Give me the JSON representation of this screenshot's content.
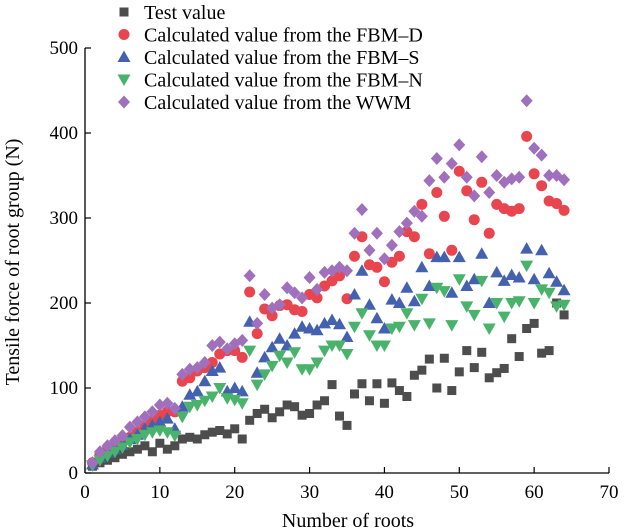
{
  "chart_data": {
    "type": "scatter",
    "xlabel": "Number of roots",
    "ylabel": "Tensile force of root group (N)",
    "xlim": [
      0,
      70
    ],
    "ylim": [
      0,
      500
    ],
    "xticks": [
      0,
      10,
      20,
      30,
      40,
      50,
      60,
      70
    ],
    "yticks": [
      0,
      100,
      200,
      300,
      400,
      500
    ],
    "grid": false,
    "legend_position": "top-left",
    "series": [
      {
        "name": "Test value",
        "marker": "square",
        "color": "#4d4d4d",
        "x": [
          1,
          2,
          3,
          4,
          5,
          6,
          7,
          8,
          9,
          10,
          11,
          12,
          13,
          14,
          15,
          16,
          17,
          18,
          19,
          20,
          21,
          22,
          23,
          24,
          25,
          26,
          27,
          28,
          29,
          30,
          31,
          32,
          33,
          34,
          35,
          36,
          37,
          38,
          39,
          40,
          41,
          42,
          43,
          44,
          45,
          46,
          47,
          48,
          49,
          50,
          51,
          52,
          53,
          54,
          55,
          56,
          57,
          58,
          59,
          60,
          61,
          62,
          63,
          64
        ],
        "y": [
          8,
          12,
          15,
          18,
          22,
          25,
          28,
          32,
          25,
          35,
          28,
          32,
          40,
          42,
          40,
          45,
          48,
          50,
          46,
          52,
          40,
          62,
          70,
          75,
          65,
          72,
          80,
          78,
          68,
          70,
          80,
          85,
          104,
          67,
          56,
          93,
          105,
          85,
          105,
          82,
          106,
          97,
          90,
          115,
          121,
          134,
          100,
          135,
          97,
          119,
          144,
          124,
          142,
          112,
          118,
          123,
          158,
          137,
          170,
          176,
          141,
          144,
          200,
          186
        ]
      },
      {
        "name": "Calculated value from the FBM–D",
        "marker": "circle",
        "color": "#e8454f",
        "x": [
          1,
          2,
          3,
          4,
          5,
          6,
          7,
          8,
          9,
          10,
          11,
          12,
          13,
          14,
          15,
          16,
          17,
          18,
          19,
          20,
          21,
          22,
          23,
          24,
          25,
          26,
          27,
          28,
          29,
          30,
          31,
          32,
          33,
          34,
          35,
          36,
          37,
          38,
          39,
          40,
          41,
          42,
          43,
          44,
          45,
          46,
          47,
          48,
          49,
          50,
          51,
          52,
          53,
          54,
          55,
          56,
          57,
          58,
          59,
          60,
          61,
          62,
          63,
          64
        ],
        "y": [
          12,
          22,
          28,
          32,
          38,
          42,
          48,
          55,
          62,
          68,
          72,
          72,
          108,
          112,
          120,
          124,
          130,
          140,
          144,
          144,
          136,
          213,
          164,
          193,
          185,
          197,
          198,
          192,
          190,
          210,
          206,
          220,
          226,
          232,
          205,
          255,
          278,
          245,
          242,
          225,
          248,
          255,
          284,
          278,
          316,
          258,
          330,
          302,
          262,
          355,
          332,
          298,
          342,
          282,
          316,
          311,
          308,
          311,
          396,
          352,
          338,
          320,
          317,
          309
        ]
      },
      {
        "name": "Calculated value from the FBM–S",
        "marker": "triangle-up",
        "color": "#4461b0",
        "x": [
          1,
          2,
          3,
          4,
          5,
          6,
          7,
          8,
          9,
          10,
          11,
          12,
          13,
          14,
          15,
          16,
          17,
          18,
          19,
          20,
          21,
          22,
          23,
          24,
          25,
          26,
          27,
          28,
          29,
          30,
          31,
          32,
          33,
          34,
          35,
          36,
          37,
          38,
          39,
          40,
          41,
          42,
          43,
          44,
          45,
          46,
          47,
          48,
          49,
          50,
          51,
          52,
          53,
          54,
          55,
          56,
          57,
          58,
          59,
          60,
          61,
          62,
          63,
          64
        ],
        "y": [
          10,
          18,
          24,
          28,
          33,
          40,
          45,
          52,
          56,
          60,
          64,
          52,
          78,
          92,
          96,
          108,
          120,
          124,
          96,
          100,
          96,
          178,
          118,
          136,
          148,
          158,
          150,
          164,
          172,
          170,
          168,
          176,
          180,
          175,
          160,
          210,
          238,
          198,
          182,
          170,
          204,
          200,
          218,
          202,
          242,
          220,
          254,
          254,
          212,
          254,
          220,
          228,
          258,
          200,
          236,
          226,
          233,
          230,
          264,
          228,
          262,
          235,
          225,
          215
        ]
      },
      {
        "name": "Calculated value from the FBM–N",
        "marker": "triangle-down",
        "color": "#49b26b",
        "x": [
          1,
          2,
          3,
          4,
          5,
          6,
          7,
          8,
          9,
          10,
          11,
          12,
          13,
          14,
          15,
          16,
          17,
          18,
          19,
          20,
          21,
          22,
          23,
          24,
          25,
          26,
          27,
          28,
          29,
          30,
          31,
          32,
          33,
          34,
          35,
          36,
          37,
          38,
          39,
          40,
          41,
          42,
          43,
          44,
          45,
          46,
          47,
          48,
          49,
          50,
          51,
          52,
          53,
          54,
          55,
          56,
          57,
          58,
          59,
          60,
          61,
          62,
          63,
          64
        ],
        "y": [
          9,
          15,
          20,
          25,
          30,
          36,
          40,
          45,
          48,
          50,
          48,
          44,
          66,
          78,
          80,
          85,
          90,
          100,
          88,
          86,
          82,
          144,
          104,
          116,
          126,
          138,
          130,
          142,
          122,
          122,
          130,
          144,
          150,
          150,
          140,
          172,
          188,
          162,
          150,
          150,
          170,
          172,
          188,
          174,
          205,
          176,
          218,
          214,
          174,
          228,
          196,
          186,
          226,
          170,
          200,
          184,
          200,
          202,
          244,
          200,
          216,
          212,
          196,
          198
        ]
      },
      {
        "name": "Calculated value from the WWM",
        "marker": "diamond",
        "color": "#a070bc",
        "x": [
          1,
          2,
          3,
          4,
          5,
          6,
          7,
          8,
          9,
          10,
          11,
          12,
          13,
          14,
          15,
          16,
          17,
          18,
          19,
          20,
          21,
          22,
          23,
          24,
          25,
          26,
          27,
          28,
          29,
          30,
          31,
          32,
          33,
          34,
          35,
          36,
          37,
          38,
          39,
          40,
          41,
          42,
          43,
          44,
          45,
          46,
          47,
          48,
          49,
          50,
          51,
          52,
          53,
          54,
          55,
          56,
          57,
          58,
          59,
          60,
          61,
          62,
          63,
          64
        ],
        "y": [
          12,
          25,
          32,
          38,
          44,
          54,
          60,
          66,
          72,
          80,
          82,
          76,
          116,
          122,
          124,
          130,
          150,
          154,
          146,
          152,
          156,
          232,
          176,
          210,
          194,
          198,
          218,
          212,
          206,
          230,
          216,
          236,
          238,
          242,
          238,
          282,
          310,
          262,
          282,
          252,
          268,
          284,
          294,
          308,
          302,
          344,
          370,
          348,
          364,
          386,
          348,
          326,
          372,
          330,
          350,
          342,
          346,
          348,
          438,
          382,
          374,
          350,
          350,
          345
        ]
      }
    ]
  }
}
